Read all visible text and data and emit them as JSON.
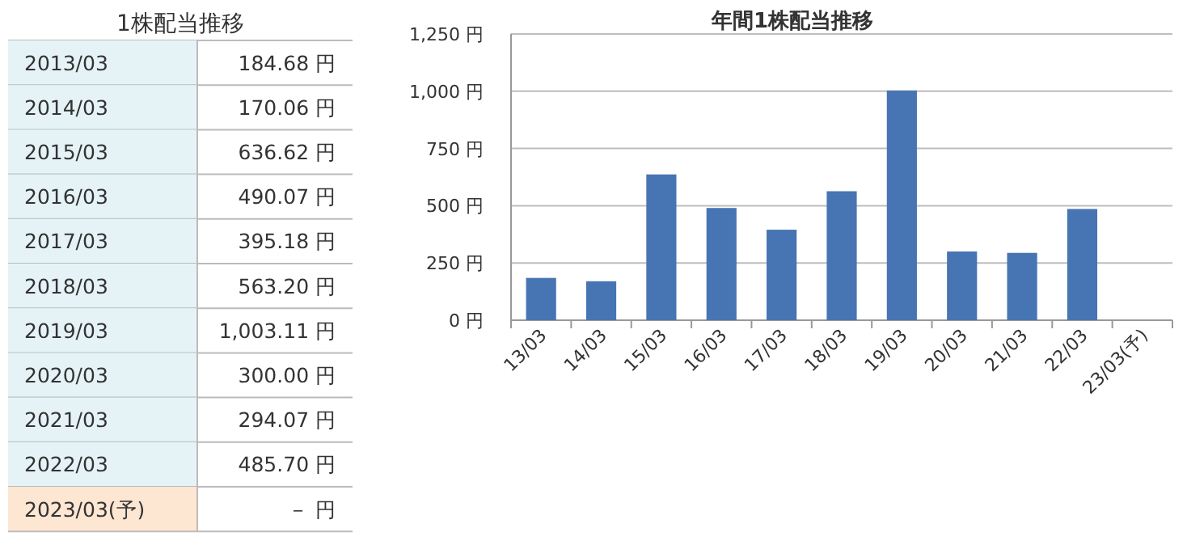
{
  "chart_data": [
    {
      "type": "other",
      "title": "1株配当推移",
      "categories": [
        "2013/03",
        "2014/03",
        "2015/03",
        "2016/03",
        "2017/03",
        "2018/03",
        "2019/03",
        "2020/03",
        "2021/03",
        "2022/03",
        "2023/03(予)"
      ],
      "value_labels": [
        "184.68 円",
        "170.06 円",
        "636.62 円",
        "490.07 円",
        "395.18 円",
        "563.20 円",
        "1,003.11 円",
        "300.00 円",
        "294.07 円",
        "485.70 円",
        "－ 円"
      ],
      "colors": [
        "#e5f3f7",
        "#e5f3f7",
        "#e5f3f7",
        "#e5f3f7",
        "#e5f3f7",
        "#e5f3f7",
        "#e5f3f7",
        "#e5f3f7",
        "#e5f3f7",
        "#e5f3f7",
        "#fde6d2"
      ]
    },
    {
      "type": "bar",
      "title": "年間1株配当推移",
      "categories": [
        "13/03",
        "14/03",
        "15/03",
        "16/03",
        "17/03",
        "18/03",
        "19/03",
        "20/03",
        "21/03",
        "22/03",
        "23/03(予)"
      ],
      "values": [
        184.68,
        170.06,
        636.62,
        490.07,
        395.18,
        563.2,
        1003.11,
        300.0,
        294.07,
        485.7,
        null
      ],
      "color": "#4775b4",
      "ylim": [
        0,
        1250
      ],
      "yticks": [
        {
          "value": 0,
          "label": "0 円"
        },
        {
          "value": 250,
          "label": "250 円"
        },
        {
          "value": 500,
          "label": "500 円"
        },
        {
          "value": 750,
          "label": "750 円"
        },
        {
          "value": 1000,
          "label": "1,000 円"
        },
        {
          "value": 1250,
          "label": "1,250 円"
        }
      ],
      "grid": "y"
    }
  ]
}
